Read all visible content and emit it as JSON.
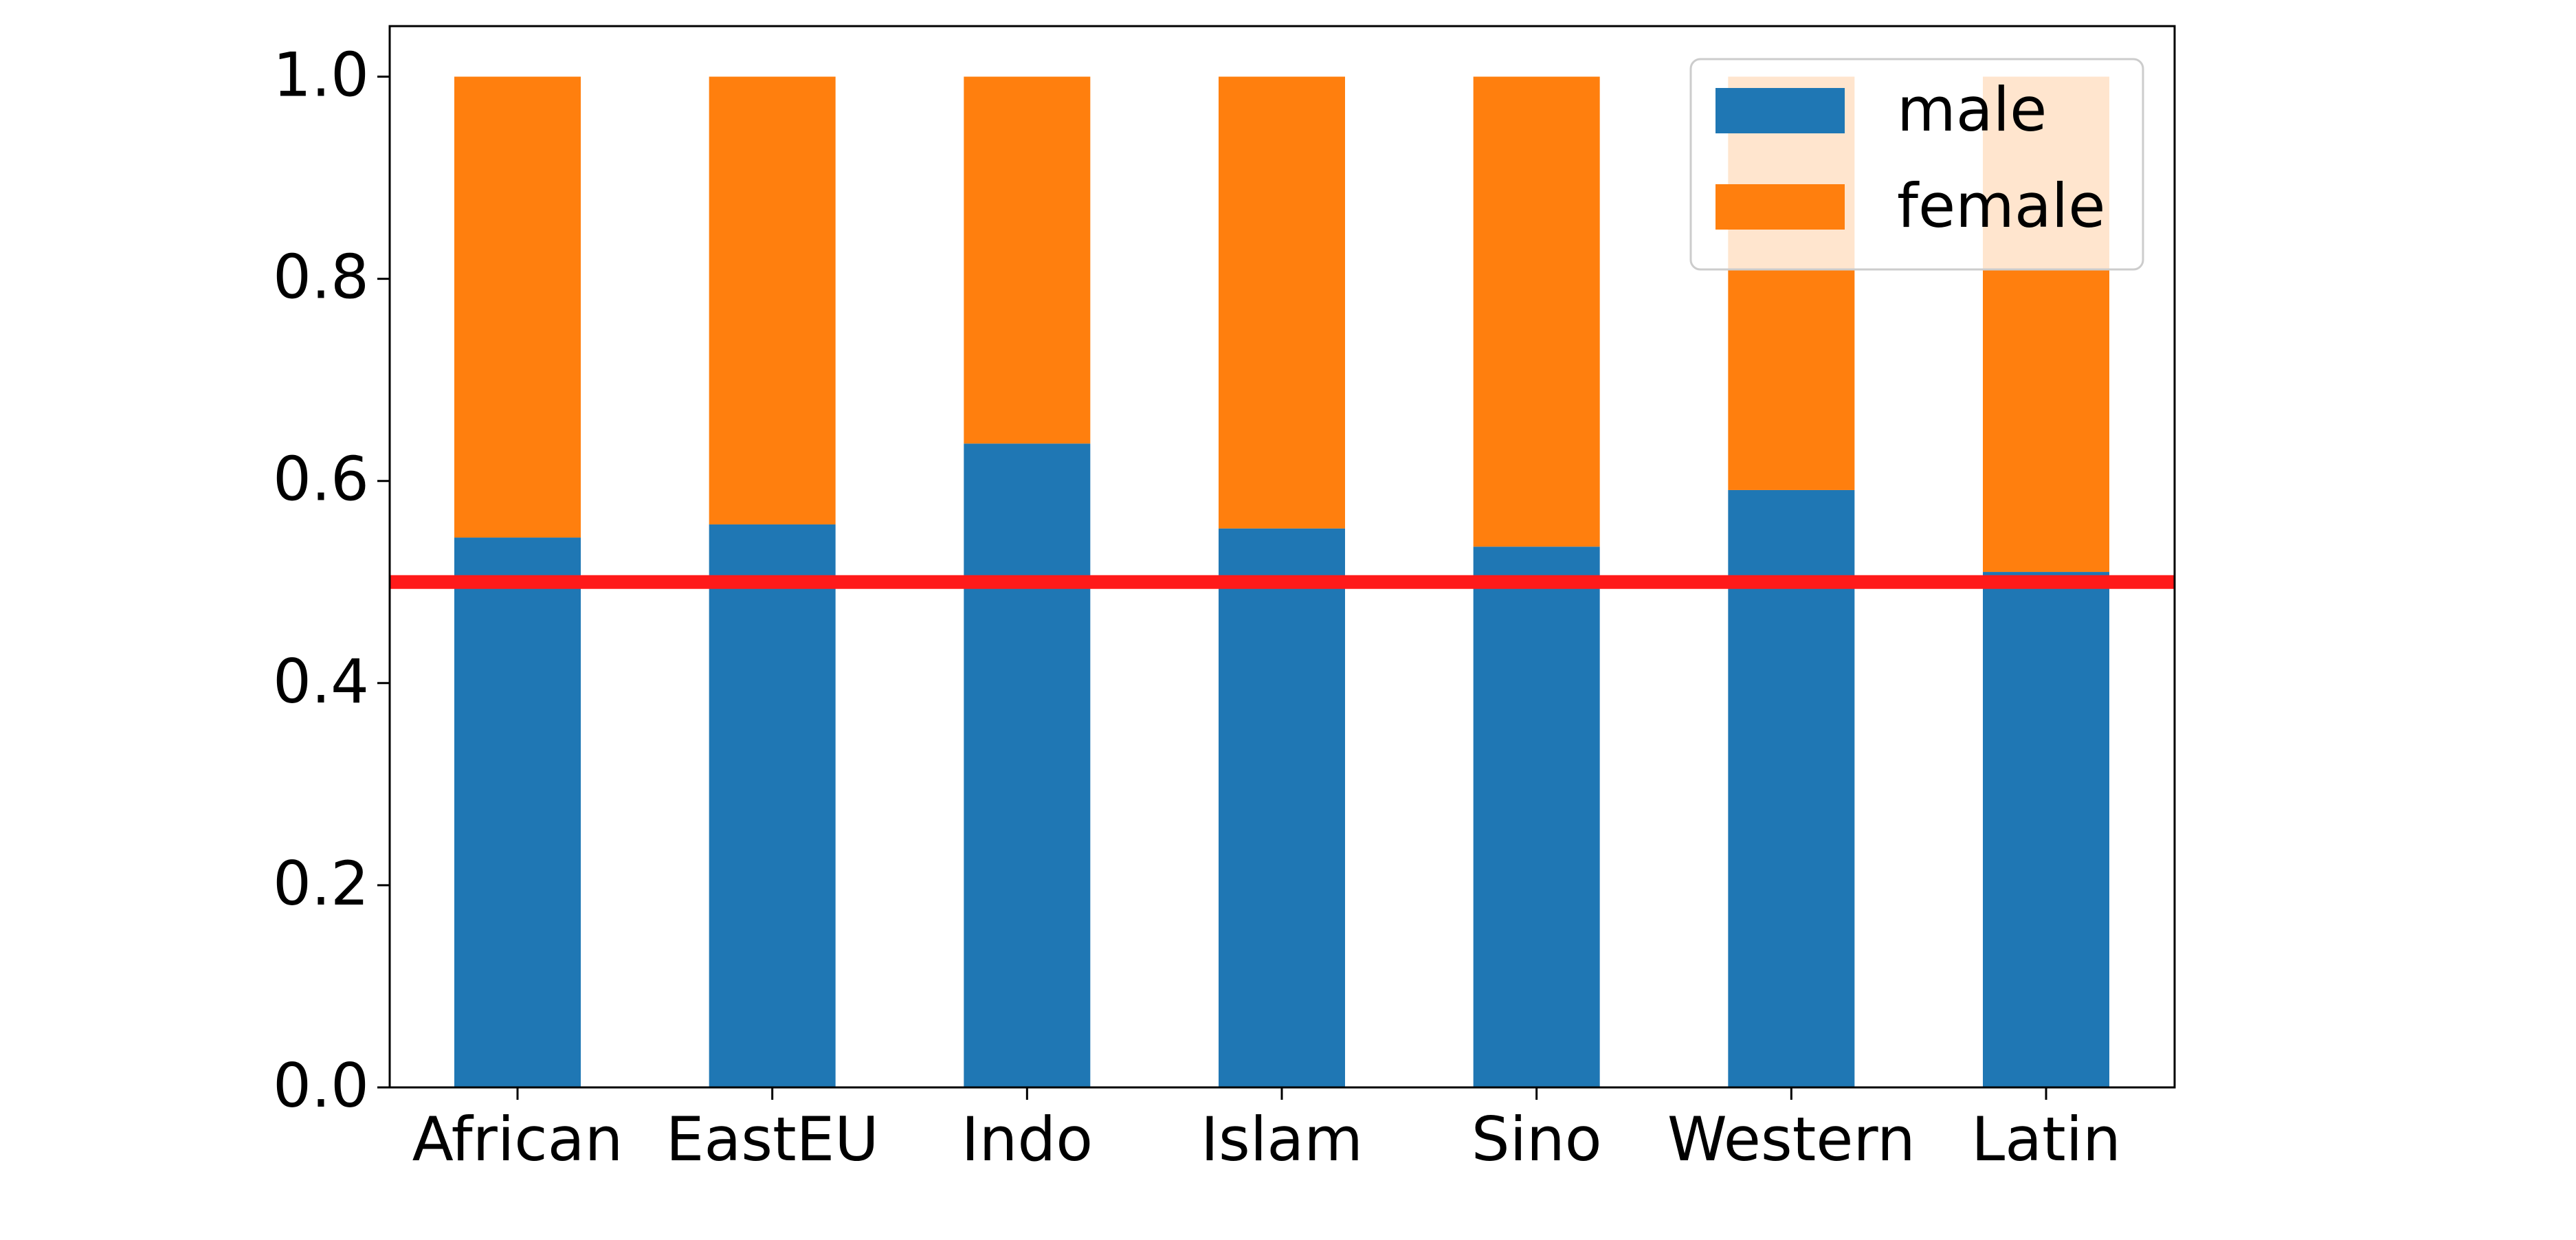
{
  "chart_data": {
    "type": "bar",
    "stacked": true,
    "categories": [
      "African",
      "EastEU",
      "Indo",
      "Islam",
      "Sino",
      "Western",
      "Latin"
    ],
    "series": [
      {
        "name": "male",
        "values": [
          0.544,
          0.557,
          0.637,
          0.553,
          0.535,
          0.591,
          0.51
        ],
        "color": "#1f77b4"
      },
      {
        "name": "female",
        "values": [
          0.456,
          0.443,
          0.363,
          0.447,
          0.465,
          0.409,
          0.49
        ],
        "color": "#ff7f0e"
      }
    ],
    "reference_line": {
      "y": 0.5,
      "color": "#ff1a1a"
    },
    "ylim": [
      0,
      1.05
    ],
    "yticks": [
      "0.0",
      "0.2",
      "0.4",
      "0.6",
      "0.8",
      "1.0"
    ],
    "ytick_values": [
      0,
      0.2,
      0.4,
      0.6,
      0.8,
      1.0
    ],
    "title": "",
    "xlabel": "",
    "ylabel": "",
    "legend": {
      "position": "top-right",
      "entries": [
        "male",
        "female"
      ]
    },
    "grid": false
  }
}
